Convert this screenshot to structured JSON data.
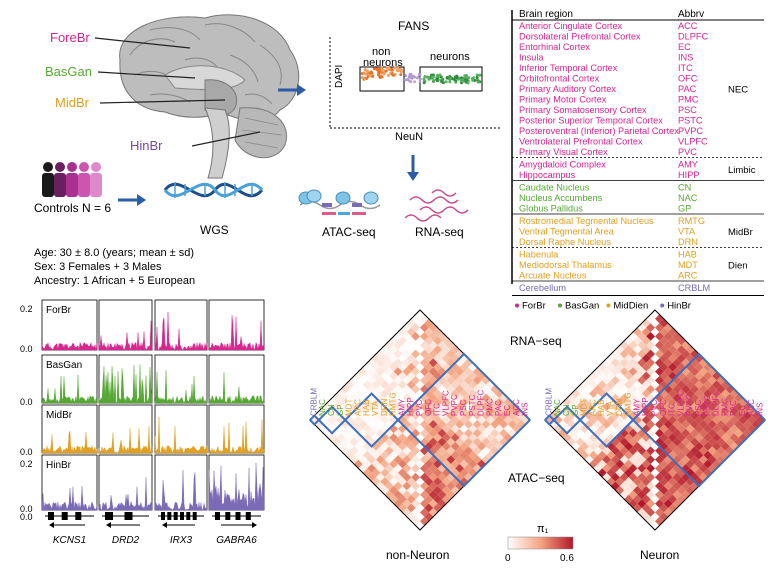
{
  "colors": {
    "forebrain": "#d6268f",
    "basgan": "#55a832",
    "midbrain": "#e0a020",
    "hindbrain": "#7a6ab8",
    "arrow": "#2a5ca8",
    "heat_high": "#d7191c",
    "hdiag": "#3b6fc2"
  },
  "brain_panel": {
    "labels": [
      "ForeBr",
      "BasGan",
      "MidBr",
      "HinBr"
    ]
  },
  "fans_panel": {
    "title": "FANS",
    "y_label": "DAPI",
    "x_label": "NeuN",
    "gate_non": "non\nneurons",
    "gate_neu": "neurons"
  },
  "assays": {
    "atac": "ATAC-seq",
    "rna": "RNA-seq",
    "wgs": "WGS"
  },
  "cohort": {
    "controls": "Controls N = 6",
    "age": "Age: 30 ± 8.0 (years; mean ± sd)",
    "sex": "Sex: 3 Females + 3 Males",
    "ancestry": "Ancestry: 1 African + 5 European"
  },
  "region_table": {
    "header_region": "Brain region",
    "header_abbrv": "Abbrv",
    "groups": [
      {
        "name": "NEC",
        "color_key": "forebrain",
        "rows": [
          [
            "Anterior Cingulate Cortex",
            "ACC"
          ],
          [
            "Dorsolateral Prefrontal Cortex",
            "DLPFC"
          ],
          [
            "Entorhinal Cortex",
            "EC"
          ],
          [
            "Insula",
            "INS"
          ],
          [
            "Inferior Temporal Cortex",
            "ITC"
          ],
          [
            "Orbitofrontal Cortex",
            "OFC"
          ],
          [
            "Primary Auditory Cortex",
            "PAC"
          ],
          [
            "Primary Motor Cortex",
            "PMC"
          ],
          [
            "Primary Somatosensory Cortex",
            "PSC"
          ],
          [
            "Posterior Superior Temporal Cortex",
            "PSTC"
          ],
          [
            "Posteroventral (Inferior) Parietal Cortex",
            "PVPC"
          ],
          [
            "Ventrolateral Prefrontal Cortex",
            "VLPFC"
          ],
          [
            "Primary Visual Cortex",
            "PVC"
          ]
        ]
      },
      {
        "name": "Limbic",
        "color_key": "forebrain",
        "rows": [
          [
            "Amygdaloid Complex",
            "AMY"
          ],
          [
            "Hippocampus",
            "HIPP"
          ]
        ]
      },
      {
        "name": "",
        "color_key": "basgan",
        "rows": [
          [
            "Caudate Nucleus",
            "CN"
          ],
          [
            "Nucleus Accumbens",
            "NAC"
          ],
          [
            "Globus Pallidus",
            "GP"
          ]
        ]
      },
      {
        "name": "MidBr",
        "color_key": "midbrain",
        "rows": [
          [
            "Rostromedial Tegmental Nucleus",
            "RMTG"
          ],
          [
            "Ventral Tegmental Area",
            "VTA"
          ],
          [
            "Dorsal Raphe Nucleus",
            "DRN"
          ]
        ]
      },
      {
        "name": "Dien",
        "color_key": "midbrain",
        "rows": [
          [
            "Habenula",
            "HAB"
          ],
          [
            "Mediodorsal Thalamus",
            "MDT"
          ],
          [
            "Arcuate Nucleus",
            "ARC"
          ]
        ]
      },
      {
        "name": "",
        "color_key": "hindbrain",
        "rows": [
          [
            "Cerebellum",
            "CRBLM"
          ]
        ]
      }
    ],
    "legend": [
      {
        "label": "ForBr",
        "color_key": "forebrain"
      },
      {
        "label": "BasGan",
        "color_key": "basgan"
      },
      {
        "label": "MidDien",
        "color_key": "midbrain"
      },
      {
        "label": "HinBr",
        "color_key": "hindbrain"
      }
    ]
  },
  "tracks": {
    "rows": [
      {
        "label": "ForBr",
        "color_key": "forebrain",
        "ymax": "0.2",
        "ymin": "0.0"
      },
      {
        "label": "BasGan",
        "color_key": "basgan",
        "ymax": "",
        "ymin": "0.0"
      },
      {
        "label": "MidBr",
        "color_key": "midbrain",
        "ymax": "",
        "ymin": "0.0"
      },
      {
        "label": "HinBr",
        "color_key": "hindbrain",
        "ymax": "0.2",
        "ymin": "0.0"
      }
    ],
    "genes": [
      "KCNS1",
      "DRD2",
      "IRX3",
      "GABRA6"
    ],
    "axis_zero": "0.0"
  },
  "heatmaps": {
    "order": [
      "CRBLM",
      "NAC",
      "CN",
      "GP",
      "MDT",
      "ARC",
      "HAB",
      "VTA",
      "DRN",
      "RMTG",
      "AMY",
      "HIPP",
      "PVC",
      "OFC",
      "ITC",
      "VLPFC",
      "PVPC",
      "PSC",
      "PSTC",
      "DLPFC",
      "PMC",
      "PAC",
      "EC",
      "ACC",
      "INS"
    ],
    "label_colors": [
      "hindbrain",
      "basgan",
      "basgan",
      "basgan",
      "midbrain",
      "midbrain",
      "midbrain",
      "midbrain",
      "midbrain",
      "midbrain",
      "forebrain",
      "forebrain",
      "forebrain",
      "forebrain",
      "forebrain",
      "forebrain",
      "forebrain",
      "forebrain",
      "forebrain",
      "forebrain",
      "forebrain",
      "forebrain",
      "forebrain",
      "forebrain",
      "forebrain"
    ],
    "left_title": "non-Neuron",
    "right_title": "Neuron",
    "top_label": "RNA−seq",
    "bottom_label": "ATAC−seq",
    "colorbar_title": "π₁",
    "colorbar_min": "0",
    "colorbar_max": "0.6"
  }
}
